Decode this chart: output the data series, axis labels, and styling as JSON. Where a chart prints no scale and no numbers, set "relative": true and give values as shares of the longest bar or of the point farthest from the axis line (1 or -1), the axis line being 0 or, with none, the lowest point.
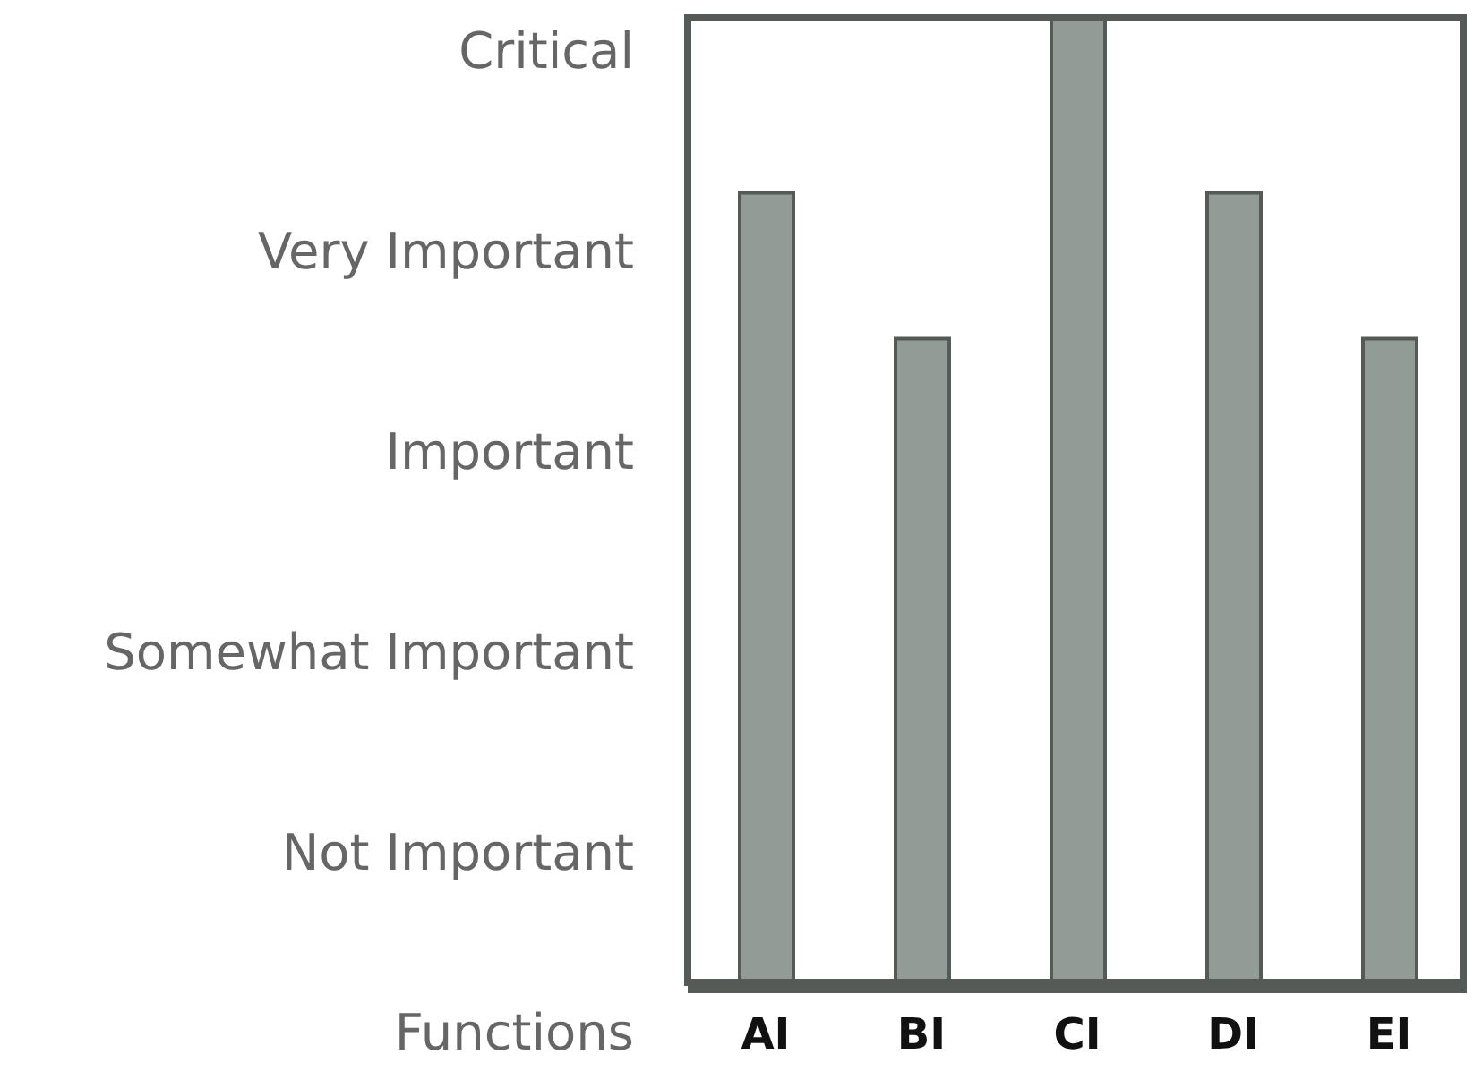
{
  "chart_data": {
    "type": "bar",
    "xlabel": "Functions",
    "categories": [
      "AI",
      "BI",
      "CI",
      "DI",
      "EI"
    ],
    "values": [
      0.82,
      0.67,
      1,
      0.82,
      0.67
    ],
    "color": "#939b97",
    "relative": true,
    "annotations": [
      "Critical",
      "Very Important",
      "Important",
      "Somewhat Important",
      "Not Important"
    ],
    "grid": false
  }
}
